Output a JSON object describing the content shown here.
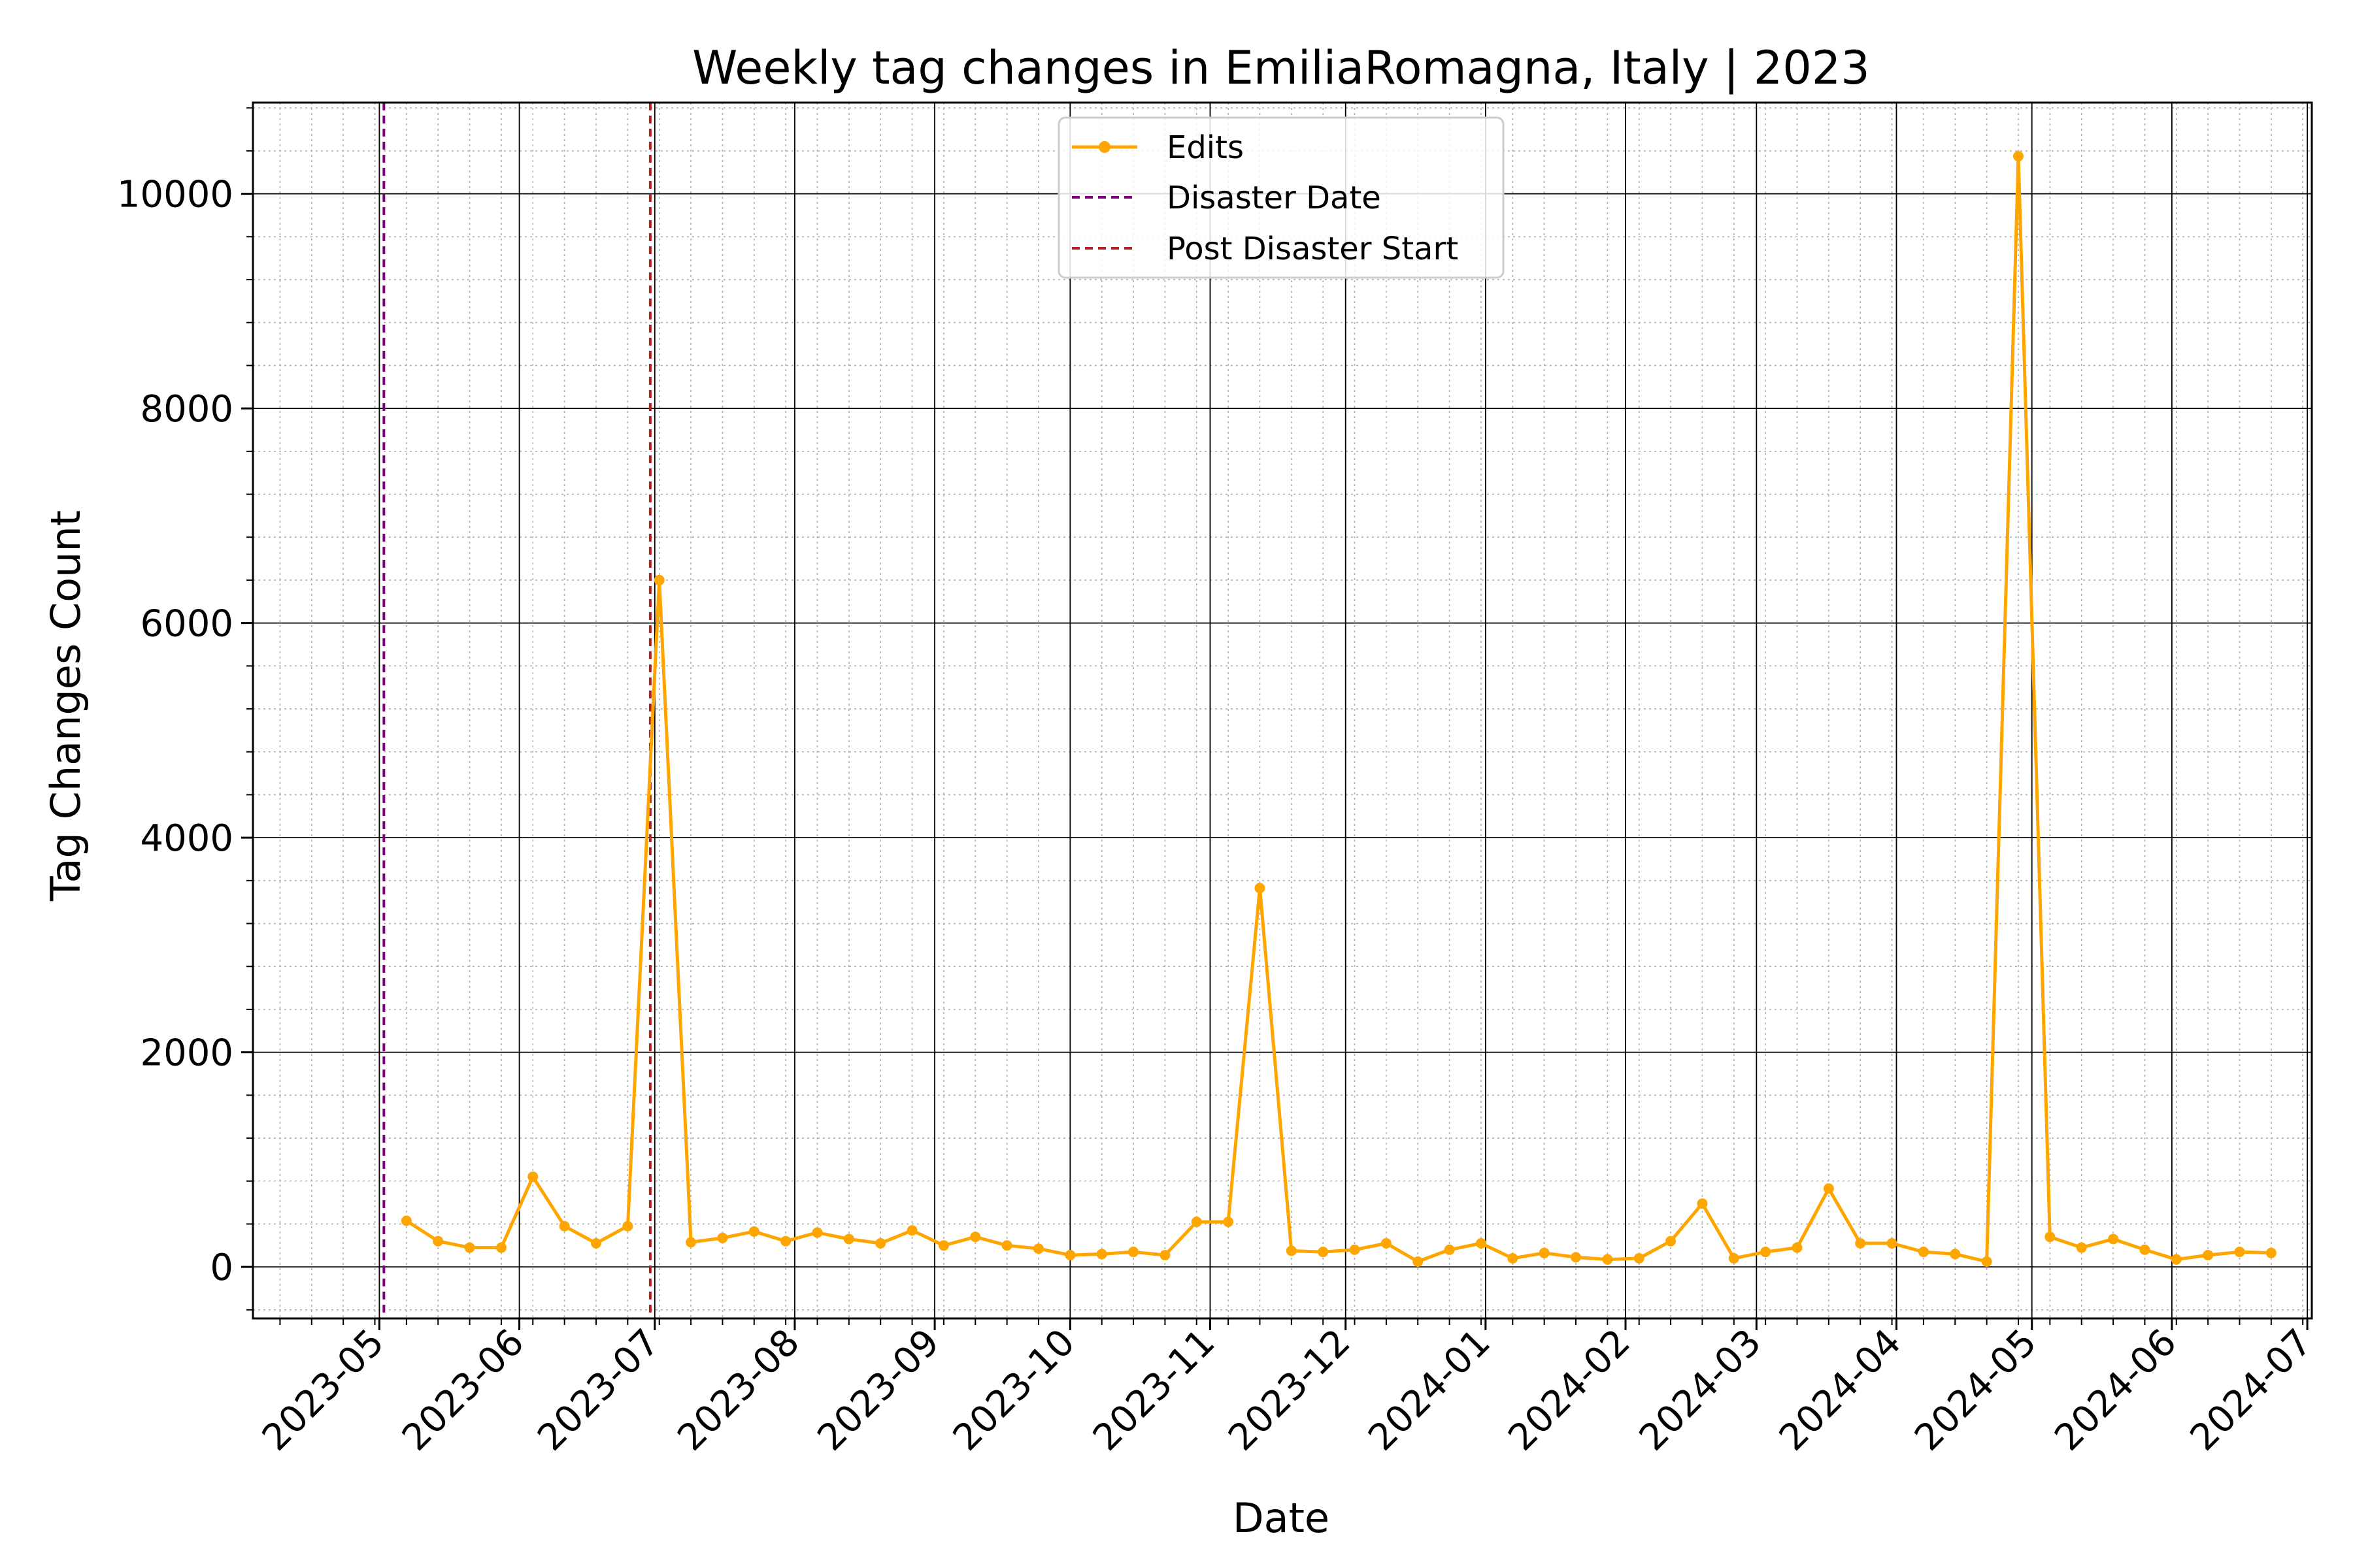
{
  "chart_data": {
    "type": "line",
    "title": "Weekly tag changes in EmiliaRomagna, Italy | 2023",
    "xlabel": "Date",
    "ylabel": "Tag Changes Count",
    "x_axis_type": "date",
    "xlim": [
      "2023-04-03",
      "2024-07-02"
    ],
    "ylim": [
      -480,
      10850
    ],
    "xticks": [
      "2023-05",
      "2023-06",
      "2023-07",
      "2023-08",
      "2023-09",
      "2023-10",
      "2023-11",
      "2023-12",
      "2024-01",
      "2024-02",
      "2024-03",
      "2024-04",
      "2024-05",
      "2024-06",
      "2024-07"
    ],
    "yticks": [
      0,
      2000,
      4000,
      6000,
      8000,
      10000
    ],
    "grid": {
      "major": true,
      "minor": true
    },
    "legend_position": "top-center",
    "series": [
      {
        "name": "Edits",
        "color": "#ffa500",
        "marker": "circle",
        "x": [
          "2023-05-07",
          "2023-05-14",
          "2023-05-21",
          "2023-05-28",
          "2023-06-04",
          "2023-06-11",
          "2023-06-18",
          "2023-06-25",
          "2023-07-02",
          "2023-07-09",
          "2023-07-16",
          "2023-07-23",
          "2023-07-30",
          "2023-08-06",
          "2023-08-13",
          "2023-08-20",
          "2023-08-27",
          "2023-09-03",
          "2023-09-10",
          "2023-09-17",
          "2023-09-24",
          "2023-10-01",
          "2023-10-08",
          "2023-10-15",
          "2023-10-22",
          "2023-10-29",
          "2023-11-05",
          "2023-11-12",
          "2023-11-19",
          "2023-11-26",
          "2023-12-03",
          "2023-12-10",
          "2023-12-17",
          "2023-12-24",
          "2023-12-31",
          "2024-01-07",
          "2024-01-14",
          "2024-01-21",
          "2024-01-28",
          "2024-02-04",
          "2024-02-11",
          "2024-02-18",
          "2024-02-25",
          "2024-03-03",
          "2024-03-10",
          "2024-03-17",
          "2024-03-24",
          "2024-03-31",
          "2024-04-07",
          "2024-04-14",
          "2024-04-21",
          "2024-04-28",
          "2024-05-05",
          "2024-05-12",
          "2024-05-19",
          "2024-05-26",
          "2024-06-02",
          "2024-06-09",
          "2024-06-16",
          "2024-06-23"
        ],
        "values": [
          430,
          240,
          180,
          180,
          840,
          380,
          220,
          380,
          6400,
          230,
          270,
          330,
          240,
          320,
          260,
          220,
          340,
          200,
          280,
          200,
          170,
          110,
          120,
          140,
          110,
          420,
          420,
          3530,
          150,
          140,
          160,
          220,
          50,
          160,
          220,
          80,
          130,
          90,
          70,
          80,
          240,
          590,
          80,
          140,
          180,
          730,
          220,
          220,
          140,
          120,
          50,
          10350,
          280,
          180,
          260,
          160,
          70,
          110,
          140,
          130
        ]
      }
    ],
    "reference_lines": [
      {
        "name": "Disaster Date",
        "date": "2023-05-02",
        "color": "#800080",
        "style": "dashed"
      },
      {
        "name": "Post Disaster Start",
        "date": "2023-06-30",
        "color": "#b22222",
        "style": "dashed"
      }
    ]
  }
}
